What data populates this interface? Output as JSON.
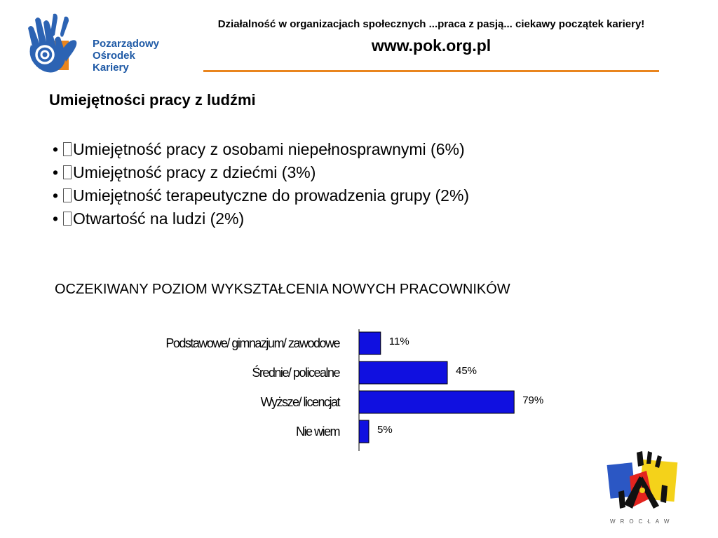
{
  "header": {
    "tagline": "Działalność w organizacjach społecznych ...praca z pasją... ciekawy początek kariery!",
    "url": "www.pok.org.pl",
    "rule_color": "#e9851e"
  },
  "logo": {
    "icon": "hand-logo-icon",
    "lines": [
      "Pozarządowy",
      "Ośrodek",
      "Kariery"
    ],
    "color": "#1f5aa6"
  },
  "content": {
    "section_title": "Umiejętności pracy z ludźmi",
    "bullets": [
      "Umiejętność pracy z osobami niepełnosprawnymi (6%)",
      "Umiejętność pracy z dziećmi (3%)",
      "Umiejętność terapeutyczne do prowadzenia grupy (2%)",
      "Otwartość na ludzi (2%)"
    ],
    "chart_heading": "OCZEKIWANY POZIOM WYKSZTAŁCENIA NOWYCH PRACOWNIKÓW"
  },
  "chart_data": {
    "type": "bar",
    "orientation": "horizontal",
    "categories": [
      "Podstawowe/ gimnazjum/ zawodowe",
      "Średnie/ policealne",
      "Wyższe/ licencjat",
      "Nie wiem"
    ],
    "values": [
      11,
      45,
      79,
      5
    ],
    "value_labels": [
      "11%",
      "45%",
      "79%",
      "5%"
    ],
    "xlim": [
      0,
      100
    ],
    "bar_color": "#1010e0",
    "grid": false
  },
  "footer_logo": {
    "icon": "wroclaw-logo-icon",
    "text": "WROCŁAW"
  }
}
